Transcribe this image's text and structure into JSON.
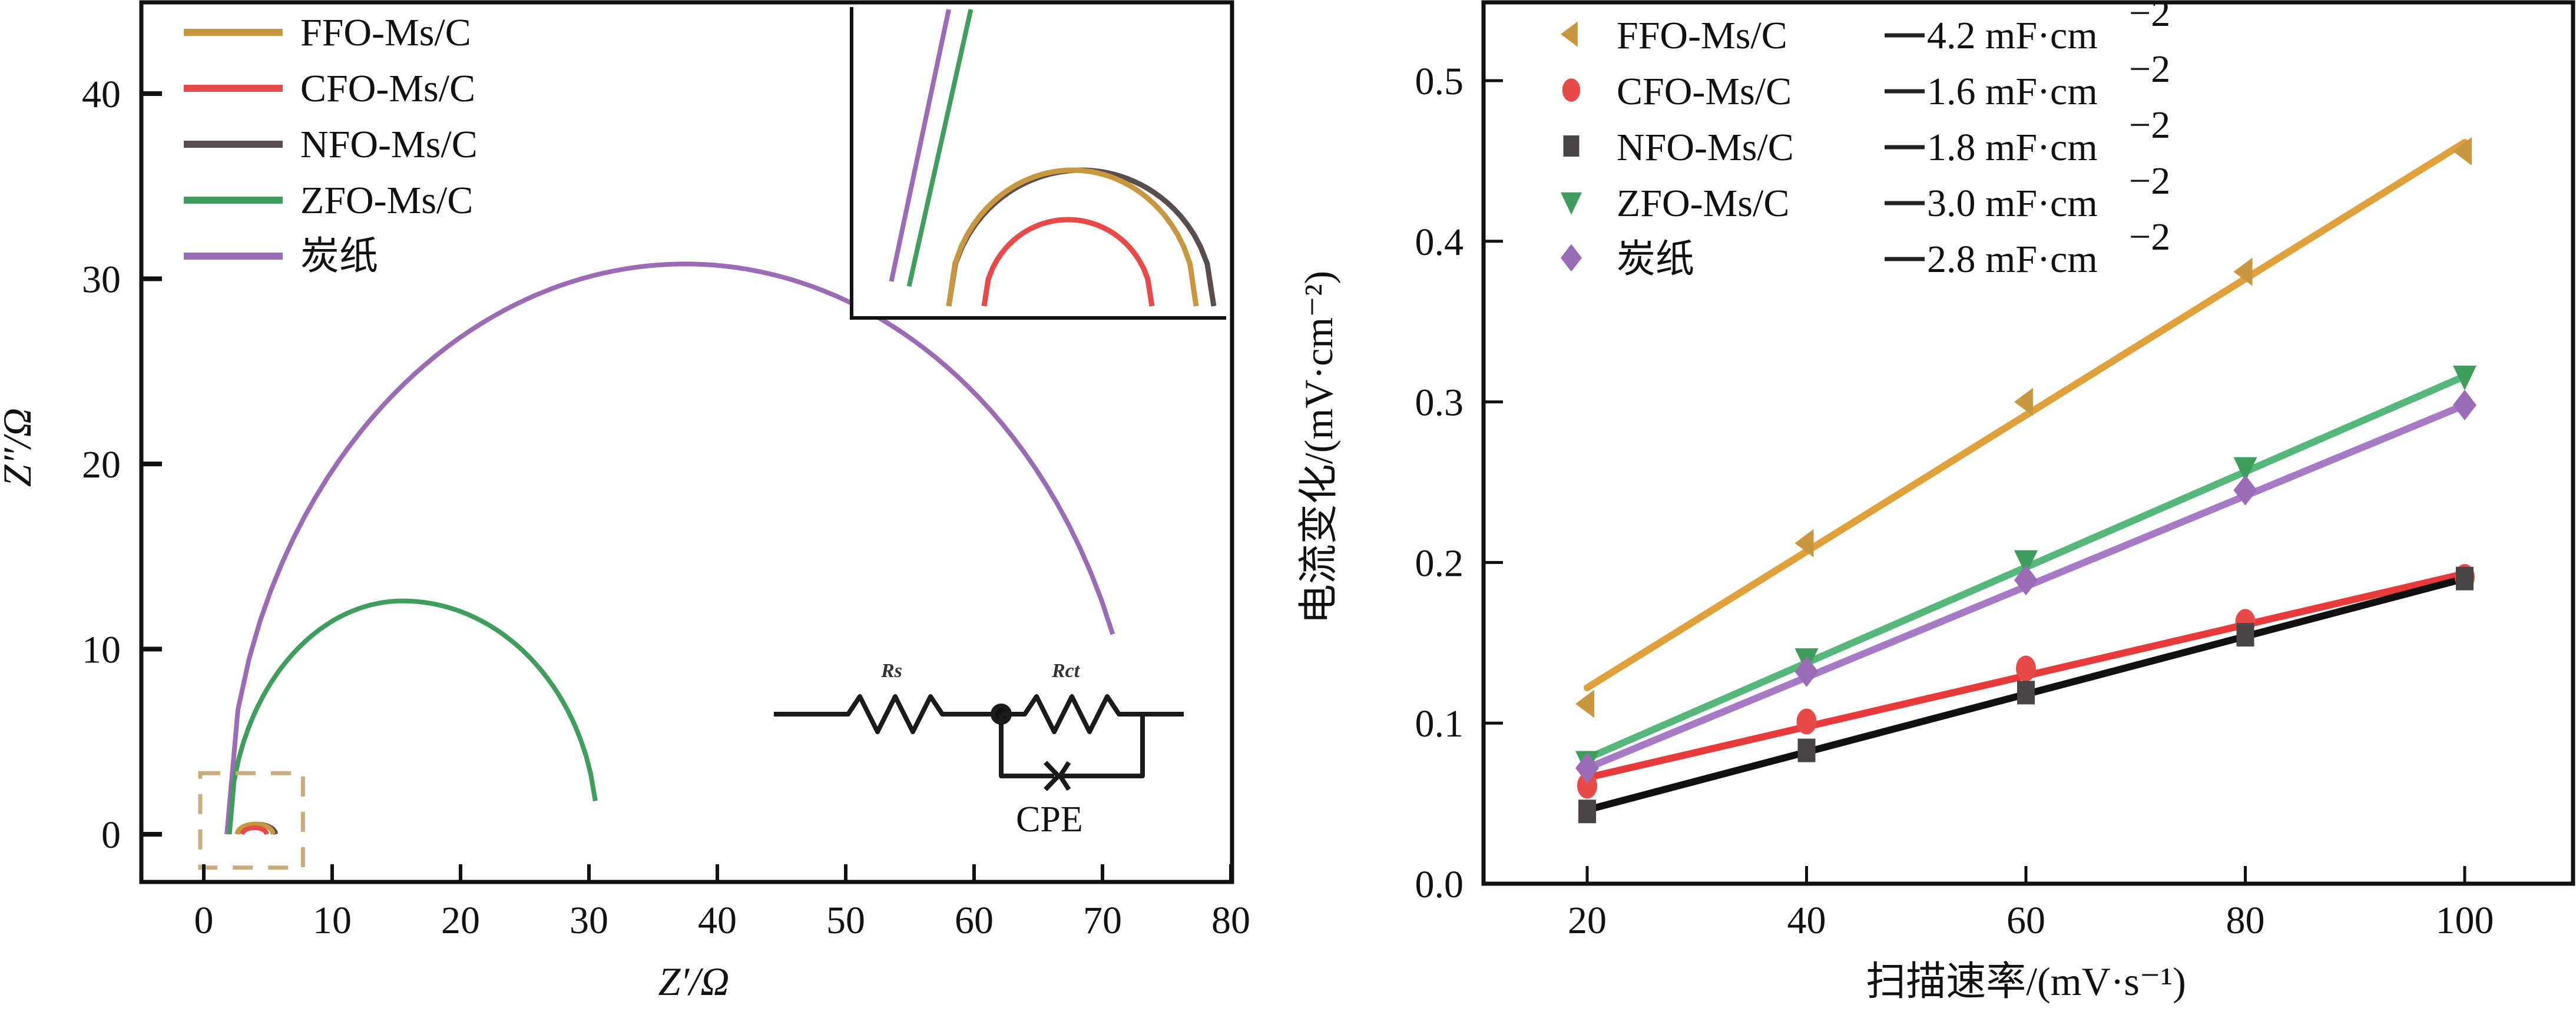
{
  "chart_data": [
    {
      "type": "line",
      "title": "",
      "xlabel": "Z′/Ω",
      "ylabel": "Z″/Ω",
      "xlim": [
        -5,
        80
      ],
      "ylim": [
        -2.5,
        45
      ],
      "xticks": [
        "0",
        "10",
        "20",
        "30",
        "40",
        "50",
        "60",
        "70",
        "80"
      ],
      "xtick_values": [
        0,
        10,
        20,
        30,
        40,
        50,
        60,
        70,
        80
      ],
      "yticks": [
        "0",
        "10",
        "20",
        "30",
        "40"
      ],
      "ytick_values": [
        0,
        10,
        20,
        30,
        40
      ],
      "grid": false,
      "legend_position": "top-left",
      "series": [
        {
          "name": "FFO-Ms/C",
          "color": "#c9973f",
          "arc": {
            "start_x": 2.6,
            "end_x": 5.4,
            "peak_y": 0.55
          }
        },
        {
          "name": "CFO-Ms/C",
          "color": "#e84a4a",
          "arc": {
            "start_x": 3.0,
            "end_x": 4.9,
            "peak_y": 0.35
          }
        },
        {
          "name": "NFO-Ms/C",
          "color": "#5a4d4d",
          "arc": {
            "start_x": 2.6,
            "end_x": 5.6,
            "peak_y": 0.55
          }
        },
        {
          "name": "ZFO-Ms/C",
          "color": "#3f9e5e",
          "arc": {
            "start_x": 2.0,
            "end_x": 30.5,
            "peak_x": 15.5,
            "peak_y": 12.6,
            "end_y": 1.8
          }
        },
        {
          "name": "炭纸",
          "color": "#9b6bb5",
          "arc": {
            "start_x": 1.8,
            "end_x": 70.8,
            "peak_x": 37.5,
            "peak_y": 30.8,
            "end_y": 10.8
          }
        }
      ],
      "inset": {
        "description": "zoom of the high-frequency region (dashed box near origin)",
        "dashed_box": {
          "x": [
            0,
            8
          ],
          "y": [
            -1.8,
            3.3
          ]
        },
        "box_color": "#c9ae7d"
      },
      "circuit": {
        "labels": [
          "Rs",
          "Rct",
          "CPE"
        ],
        "cpe_label": "CPE"
      }
    },
    {
      "type": "scatter",
      "title": "",
      "xlabel": "扫描速率/(mV·s⁻¹)",
      "ylabel": "电流变化/(mV·cm⁻²)",
      "xlim": [
        7.5,
        112
      ],
      "ylim": [
        0.0,
        0.55
      ],
      "xticks": [
        "20",
        "40",
        "60",
        "80",
        "100"
      ],
      "xtick_values": [
        20,
        40,
        60,
        80,
        100
      ],
      "yticks": [
        "0.0",
        "0.1",
        "0.2",
        "0.3",
        "0.4",
        "0.5"
      ],
      "ytick_values": [
        0.0,
        0.1,
        0.2,
        0.3,
        0.4,
        0.5
      ],
      "grid": false,
      "legend_position": "top-left",
      "x": [
        20,
        40,
        60,
        80,
        100
      ],
      "series": [
        {
          "name": "FFO-Ms/C",
          "capacitance": "4.2 mF·cm",
          "exp": "−2",
          "marker": "triangle-left",
          "color": "#c9973f",
          "line_color": "#e0a03a",
          "values": [
            0.112,
            0.212,
            0.3,
            0.381,
            0.456
          ],
          "fit": [
            0.122,
            0.4615
          ]
        },
        {
          "name": "CFO-Ms/C",
          "capacitance": "1.6 mF·cm",
          "exp": "−2",
          "marker": "circle",
          "color": "#e84a4a",
          "line_color": "#e83a3a",
          "values": [
            0.061,
            0.101,
            0.134,
            0.163,
            0.191
          ],
          "fit": [
            0.066,
            0.193
          ]
        },
        {
          "name": "NFO-Ms/C",
          "capacitance": "1.8 mF·cm",
          "exp": "−2",
          "marker": "square",
          "color": "#4a4444",
          "line_color": "#111111",
          "values": [
            0.045,
            0.083,
            0.119,
            0.155,
            0.19
          ],
          "fit": [
            0.046,
            0.19
          ]
        },
        {
          "name": "ZFO-Ms/C",
          "capacitance": "3.0 mF·cm",
          "exp": "−2",
          "marker": "triangle-down",
          "color": "#3f9e5e",
          "line_color": "#55b87a",
          "values": [
            0.076,
            0.14,
            0.201,
            0.259,
            0.316
          ],
          "fit": [
            0.078,
            0.316
          ]
        },
        {
          "name": "炭纸",
          "capacitance": "2.8 mF·cm",
          "exp": "−2",
          "marker": "diamond",
          "color": "#9b6bb5",
          "line_color": "#a77ac5",
          "values": [
            0.072,
            0.132,
            0.189,
            0.245,
            0.298
          ],
          "fit": [
            0.072,
            0.298
          ]
        }
      ]
    }
  ]
}
